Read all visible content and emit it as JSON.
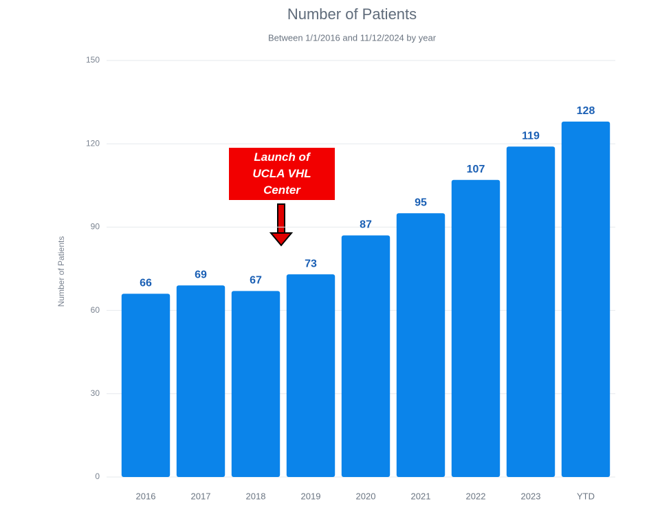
{
  "chart_data": {
    "type": "bar",
    "title": "Number of Patients",
    "subtitle": "Between 1/1/2016 and 11/12/2024 by year",
    "y_label": "Number of Patients",
    "categories": [
      "2016",
      "2017",
      "2018",
      "2019",
      "2020",
      "2021",
      "2022",
      "2023",
      "YTD"
    ],
    "values": [
      66,
      69,
      67,
      73,
      87,
      95,
      107,
      119,
      128
    ],
    "color": "#0b84ea",
    "label_color": "#1a5fb4",
    "ylim": [
      0,
      150
    ],
    "yticks": [
      0,
      30,
      60,
      90,
      120,
      150
    ],
    "grid": true,
    "annotation": "Launch of UCLA VHL Center"
  }
}
